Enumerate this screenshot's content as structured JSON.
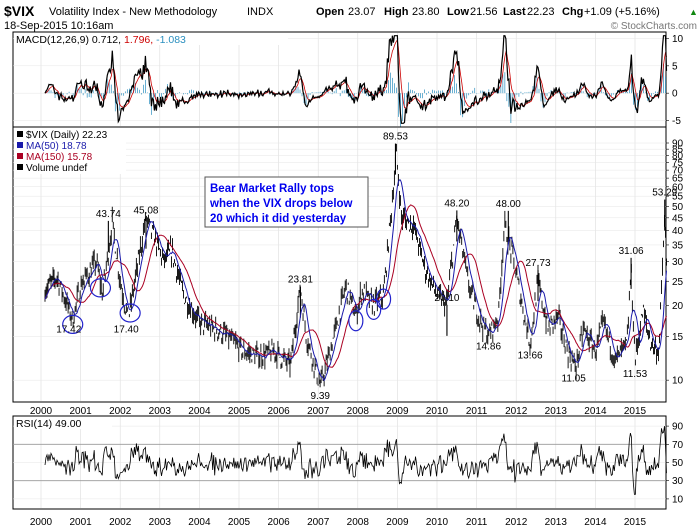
{
  "header": {
    "symbol": "$VIX",
    "name": "Volatility Index - New Methodology",
    "exchange": "INDX",
    "date": "18-Sep-2015 10:16am",
    "open_label": "Open",
    "open": "23.07",
    "high_label": "High",
    "high": "23.80",
    "low_label": "Low",
    "low": "21.56",
    "last_label": "Last",
    "last": "22.23",
    "chg_label": "Chg",
    "chg": "+1.09 (+5.16%)",
    "chg_arrow": "▲",
    "watermark": "© StockCharts.com"
  },
  "macd_panel": {
    "label_prefix": "MACD(12,26,9)",
    "v1": "0.712,",
    "v2": "1.796,",
    "v3": "-1.083",
    "yticks": [
      "10",
      "5",
      "0",
      "-5"
    ],
    "colors": {
      "macd": "#000000",
      "signal": "#cc0000",
      "hist": "#2a8fbf"
    }
  },
  "price_panel": {
    "legend": [
      {
        "text": "$VIX (Daily) 22.23",
        "color": "#000000"
      },
      {
        "text": "MA(50) 18.78",
        "color": "#1a1aaa"
      },
      {
        "text": "MA(150) 15.78",
        "color": "#aa0022"
      },
      {
        "text": "Volume undef",
        "color": "#000000"
      }
    ],
    "yticks": [
      "90",
      "85",
      "80",
      "75",
      "70",
      "65",
      "60",
      "55",
      "50",
      "45",
      "40",
      "35",
      "30",
      "25",
      "20",
      "15",
      "10"
    ],
    "annotation_lines": [
      "Bear Market Rally tops",
      "when the VIX drops below",
      "20 which it did yesterday"
    ],
    "annotation_color": "#0000ee",
    "price_labels": [
      "17.42",
      "43.74",
      "45.08",
      "17.40",
      "23.81",
      "9.39",
      "89.53",
      "48.20",
      "48.00",
      "27.73",
      "20.10",
      "14.86",
      "13.66",
      "31.06",
      "53.29",
      "11.05",
      "11.53"
    ]
  },
  "rsi_panel": {
    "label": "RSI(14) 49.00",
    "yticks": [
      "90",
      "70",
      "50",
      "30",
      "10"
    ]
  },
  "x_axis": {
    "labels": [
      "2000",
      "2001",
      "2002",
      "2003",
      "2004",
      "2005",
      "2006",
      "2007",
      "2008",
      "2009",
      "2010",
      "2011",
      "2012",
      "2013",
      "2014",
      "2015"
    ]
  },
  "chart_data": [
    {
      "type": "line",
      "title": "$VIX Volatility Index - New Methodology",
      "x": [
        "2000",
        "2001",
        "2002",
        "2003",
        "2004",
        "2005",
        "2006",
        "2007",
        "2008",
        "2009",
        "2010",
        "2011",
        "2012",
        "2013",
        "2014",
        "2015"
      ],
      "yscale": "log",
      "ylim": [
        8,
        90
      ],
      "series": [
        {
          "name": "$VIX (Daily)",
          "values": [
            23,
            25,
            32,
            28,
            16,
            12,
            12,
            16,
            30,
            45,
            22,
            30,
            20,
            14,
            14,
            17
          ]
        },
        {
          "name": "MA(50)",
          "values": [
            22,
            24,
            30,
            27,
            16,
            12,
            12,
            15,
            28,
            42,
            22,
            28,
            20,
            14,
            14,
            16
          ]
        },
        {
          "name": "MA(150)",
          "values": [
            22,
            24,
            28,
            27,
            17,
            13,
            12,
            14,
            25,
            40,
            24,
            26,
            21,
            15,
            14,
            15
          ]
        }
      ],
      "labeled_points": [
        {
          "year": 2000.6,
          "label": "17.42",
          "value": 17.42
        },
        {
          "year": 2001.6,
          "label": "43.74",
          "value": 43.74
        },
        {
          "year": 2002.55,
          "label": "45.08",
          "value": 45.08
        },
        {
          "year": 2002.05,
          "label": "17.40",
          "value": 17.4
        },
        {
          "year": 2006.45,
          "label": "23.81",
          "value": 23.81
        },
        {
          "year": 2006.95,
          "label": "9.39",
          "value": 9.39
        },
        {
          "year": 2008.85,
          "label": "89.53",
          "value": 89.53
        },
        {
          "year": 2010.4,
          "label": "48.20",
          "value": 48.2
        },
        {
          "year": 2011.7,
          "label": "48.00",
          "value": 48.0
        },
        {
          "year": 2012.45,
          "label": "27.73",
          "value": 27.73
        },
        {
          "year": 2010.15,
          "label": "20.10",
          "value": 20.1
        },
        {
          "year": 2011.2,
          "label": "14.86",
          "value": 14.86
        },
        {
          "year": 2012.25,
          "label": "13.66",
          "value": 13.66
        },
        {
          "year": 2014.8,
          "label": "31.06",
          "value": 31.06
        },
        {
          "year": 2015.65,
          "label": "53.29",
          "value": 53.29
        },
        {
          "year": 2013.35,
          "label": "11.05",
          "value": 11.05
        },
        {
          "year": 2014.9,
          "label": "11.53",
          "value": 11.53
        }
      ],
      "circled_dips": [
        2000.7,
        2001.4,
        2002.15,
        2007.85,
        2008.3,
        2008.55
      ]
    },
    {
      "type": "line",
      "title": "MACD(12,26,9)",
      "ylim": [
        -6,
        11
      ],
      "series": [
        {
          "name": "MACD",
          "values": [
            0,
            0.5,
            1,
            -1,
            -0.5,
            0,
            0.3,
            1,
            3,
            9,
            -2,
            2,
            -0.5,
            0,
            0.5,
            5
          ]
        }
      ]
    },
    {
      "type": "line",
      "title": "RSI(14)",
      "ylim": [
        0,
        100
      ],
      "series": [
        {
          "name": "RSI(14)",
          "values": [
            50,
            52,
            55,
            45,
            48,
            50,
            50,
            55,
            60,
            65,
            45,
            55,
            48,
            50,
            50,
            49
          ]
        }
      ]
    }
  ]
}
